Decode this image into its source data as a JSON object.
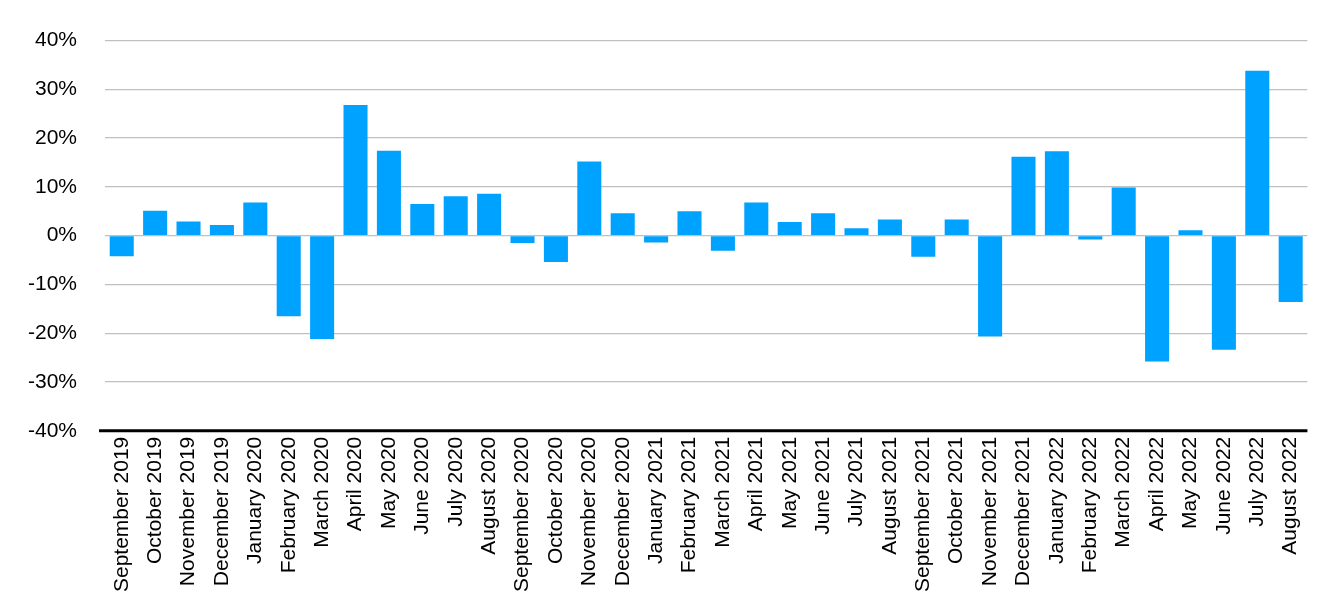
{
  "chart_data": {
    "type": "bar",
    "categories": [
      "September 2019",
      "October 2019",
      "November 2019",
      "December 2019",
      "January 2020",
      "February 2020",
      "March 2020",
      "April 2020",
      "May 2020",
      "June 2020",
      "July 2020",
      "August 2020",
      "September 2020",
      "October 2020",
      "November 2020",
      "December 2020",
      "January 2021",
      "February 2021",
      "March 2021",
      "April 2021",
      "May 2021",
      "June 2021",
      "July 2021",
      "August 2021",
      "September 2021",
      "October 2021",
      "November 2021",
      "December 2021",
      "January 2022",
      "February 2022",
      "March 2022",
      "April 2022",
      "May 2022",
      "June 2022",
      "July 2022",
      "August 2022"
    ],
    "values": [
      -4.2,
      5.1,
      2.9,
      2.2,
      6.8,
      -16.5,
      -21.2,
      26.8,
      17.4,
      6.5,
      8.1,
      8.6,
      -1.5,
      -5.4,
      15.2,
      4.6,
      -1.4,
      5.0,
      -3.1,
      6.8,
      2.8,
      4.6,
      1.5,
      3.3,
      -4.3,
      3.3,
      -20.7,
      16.2,
      17.3,
      -0.8,
      9.9,
      -25.8,
      1.1,
      -23.4,
      33.8,
      -13.6
    ],
    "color": "#00a2ff",
    "ylim": [
      -40,
      40
    ],
    "yticks": [
      {
        "value": -40,
        "label": "-40%"
      },
      {
        "value": -30,
        "label": "-30%"
      },
      {
        "value": -20,
        "label": "-20%"
      },
      {
        "value": -10,
        "label": "-10%"
      },
      {
        "value": 0,
        "label": "0%"
      },
      {
        "value": 10,
        "label": "10%"
      },
      {
        "value": 20,
        "label": "20%"
      },
      {
        "value": 30,
        "label": "30%"
      },
      {
        "value": 40,
        "label": "40%"
      }
    ],
    "grid": "y",
    "legend": false
  }
}
